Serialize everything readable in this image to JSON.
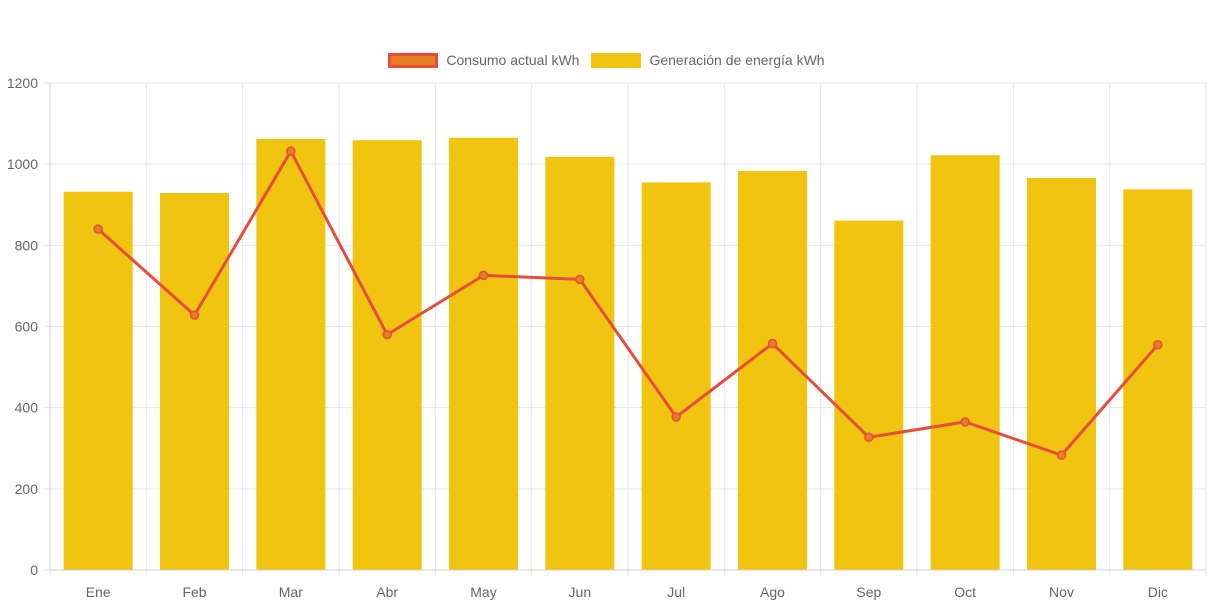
{
  "chart_data": {
    "type": "bar",
    "categories": [
      "Ene",
      "Feb",
      "Mar",
      "Abr",
      "May",
      "Jun",
      "Jul",
      "Ago",
      "Sep",
      "Oct",
      "Nov",
      "Dic"
    ],
    "series": [
      {
        "name": "Consumo actual kWh",
        "type": "line",
        "values": [
          840,
          628,
          1032,
          580,
          726,
          716,
          377,
          558,
          327,
          365,
          283,
          555
        ]
      },
      {
        "name": "Generación de energía kWh",
        "type": "bar",
        "values": [
          932,
          929,
          1062,
          1059,
          1065,
          1018,
          955,
          983,
          861,
          1022,
          966,
          938
        ]
      }
    ],
    "yticks": [
      "0",
      "200",
      "400",
      "600",
      "800",
      "1000",
      "1200"
    ],
    "ylim": [
      0,
      1200
    ],
    "grid": true,
    "legend_position": "top"
  },
  "colors": {
    "line": "#e74c3c",
    "line_fill": "#e67e22",
    "bar": "#f1c40f",
    "grid": "#e6e6e6",
    "tick_text": "#666666"
  }
}
